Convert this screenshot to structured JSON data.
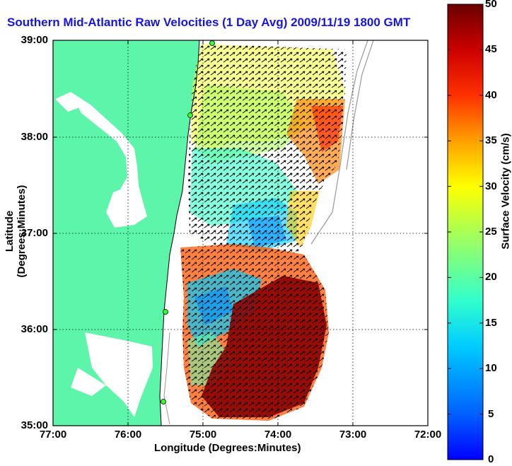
{
  "title": "Southern Mid-Atlantic Raw Velocities (1 Day Avg) 2009/11/19 1800 GMT",
  "map": {
    "xlabel": "Longitude (Degrees:Minutes)",
    "ylabel": "Latitude (Degrees:Minutes)",
    "x_ticks": [
      "77:00",
      "76:00",
      "75:00",
      "74:00",
      "73:00",
      "72:00"
    ],
    "y_ticks": [
      "39:00",
      "38:00",
      "37:00",
      "36:00",
      "35:00"
    ],
    "land_color": "#5cf5a9",
    "grid": "dotted"
  },
  "colorbar": {
    "label": "Surface Velocity (cm/s)",
    "ticks": [
      "50",
      "45",
      "40",
      "35",
      "30",
      "25",
      "20",
      "15",
      "10",
      "5",
      "0"
    ],
    "range": [
      0,
      50
    ],
    "colormap": "jet"
  }
}
